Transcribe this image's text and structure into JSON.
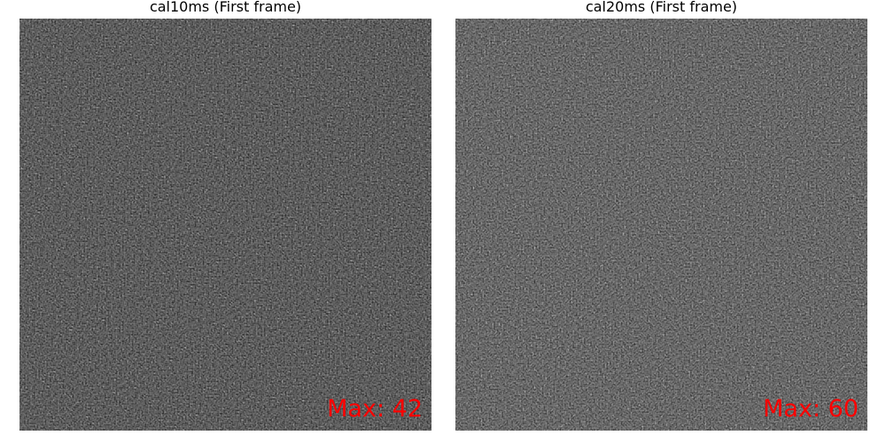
{
  "panels": [
    {
      "title": "cal10ms (First frame)",
      "max_label": "Max: 42",
      "max_value": 42,
      "brightness": 0.85
    },
    {
      "title": "cal20ms (First frame)",
      "max_label": "Max: 60",
      "max_value": 60,
      "brightness": 1.0
    }
  ],
  "colors": {
    "label_color": "#ff0000",
    "background": "#ffffff",
    "image_base": "#111111"
  }
}
